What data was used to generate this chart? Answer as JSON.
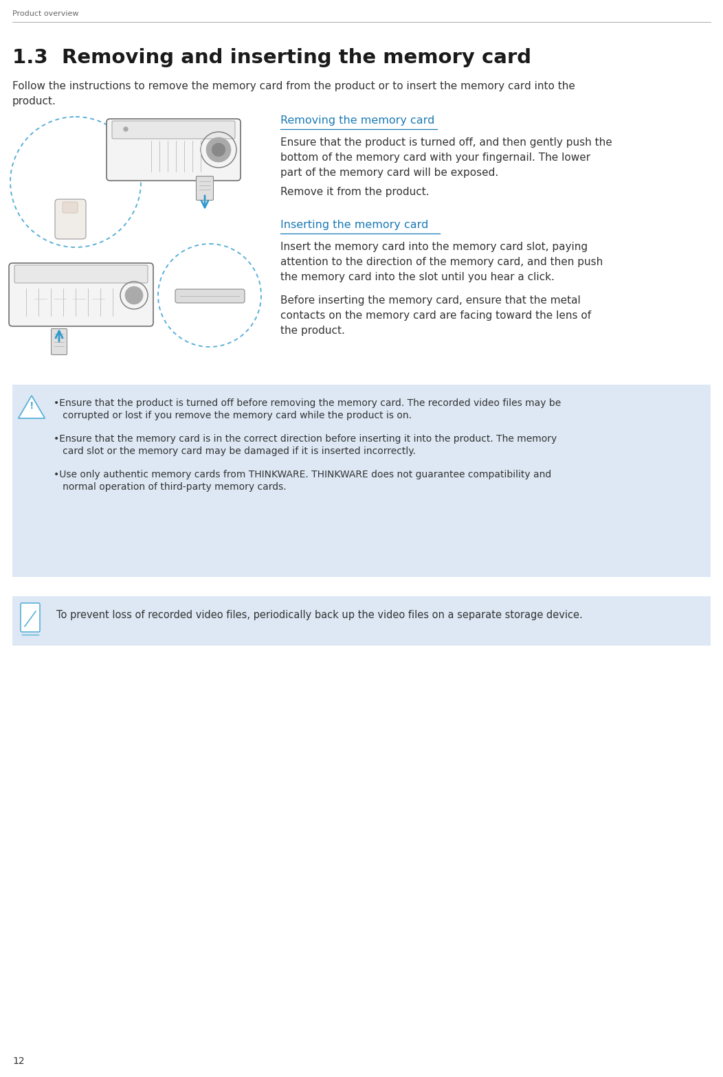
{
  "page_label": "Product overview",
  "page_number": "12",
  "section_number": "1.3",
  "section_title": "  Removing and inserting the memory card",
  "intro_line1": "Follow the instructions to remove the memory card from the product or to insert the memory card into the",
  "intro_line2": "product.",
  "removing_title": "Removing the memory card",
  "removing_para1": "Ensure that the product is turned off, and then gently push the\nbottom of the memory card with your fingernail. The lower\npart of the memory card will be exposed.",
  "removing_para2": "Remove it from the product.",
  "inserting_title": "Inserting the memory card",
  "inserting_para1": "Insert the memory card into the memory card slot, paying\nattention to the direction of the memory card, and then push\nthe memory card into the slot until you hear a click.",
  "inserting_para2": "Before inserting the memory card, ensure that the metal\ncontacts on the memory card are facing toward the lens of\nthe product.",
  "warn1_line1": "•Ensure that the product is turned off before removing the memory card. The recorded video files may be",
  "warn1_line2": "   corrupted or lost if you remove the memory card while the product is on.",
  "warn2_line1": "•Ensure that the memory card is in the correct direction before inserting it into the product. The memory",
  "warn2_line2": "   card slot or the memory card may be damaged if it is inserted incorrectly.",
  "warn3_line1": "•Use only authentic memory cards from THINKWARE. THINKWARE does not guarantee compatibility and",
  "warn3_line2": "   normal operation of third-party memory cards.",
  "note_text": "To prevent loss of recorded video files, periodically back up the video files on a separate storage device.",
  "bg_color": "#ffffff",
  "section_title_color": "#1a1a1a",
  "body_text_color": "#333333",
  "subheading_color": "#1a7ab5",
  "warning_bg_color": "#dde8f4",
  "note_bg_color": "#dde8f4",
  "page_label_color": "#666666",
  "header_line_color": "#aaaaaa"
}
